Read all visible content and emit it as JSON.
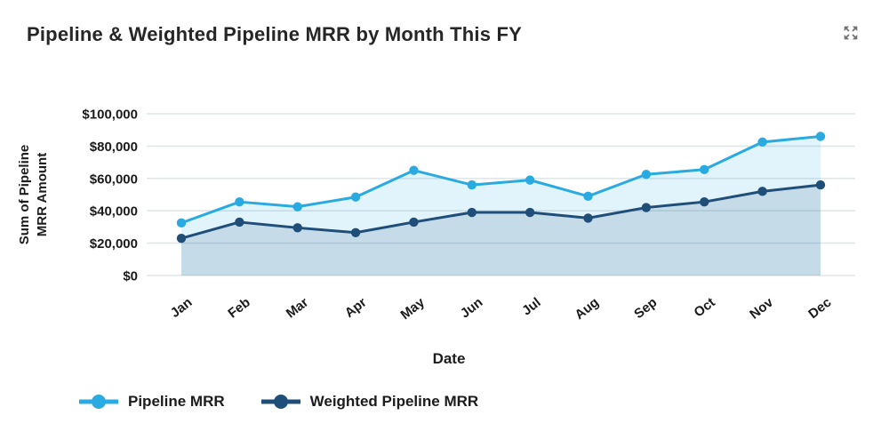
{
  "header": {
    "title": "Pipeline & Weighted Pipeline MRR by Month This FY",
    "expand_icon": "expand-icon",
    "expand_icon_color": "#737373"
  },
  "chart_data": {
    "type": "area",
    "title": "Pipeline & Weighted Pipeline MRR by Month This FY",
    "categories": [
      "Jan",
      "Feb",
      "Mar",
      "Apr",
      "May",
      "Jun",
      "Jul",
      "Aug",
      "Sep",
      "Oct",
      "Nov",
      "Dec"
    ],
    "series": [
      {
        "name": "Pipeline MRR",
        "color": "#29ABE2",
        "fill": "rgba(41,171,226,0.14)",
        "values": [
          32500,
          45500,
          42500,
          48500,
          65000,
          56000,
          59000,
          49000,
          62500,
          65500,
          82500,
          86000
        ]
      },
      {
        "name": "Weighted Pipeline MRR",
        "color": "#1F4E79",
        "fill": "rgba(31,78,121,0.14)",
        "values": [
          23000,
          33000,
          29500,
          26500,
          33000,
          39000,
          39000,
          35500,
          42000,
          45500,
          52000,
          56000
        ]
      }
    ],
    "xlabel": "Date",
    "ylabel": "Sum of Pipeline MRR Amount",
    "ylabel_lines": [
      "Sum of Pipeline",
      "MRR Amount"
    ],
    "ylim": [
      0,
      100000
    ],
    "ytick_step": 20000,
    "ytick_labels": [
      "$0",
      "$20,000",
      "$40,000",
      "$60,000",
      "$80,000",
      "$100,000"
    ],
    "grid": true,
    "gridline_color": "#E0E6E8",
    "legend_position": "bottom-left",
    "marker": "circle"
  }
}
